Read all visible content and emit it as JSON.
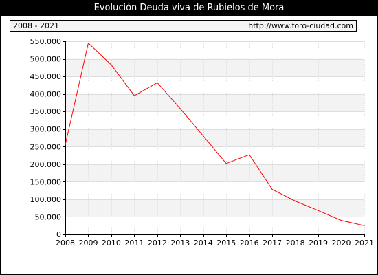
{
  "header": {
    "title": "Evolución Deuda viva de Rubielos de Mora",
    "period": "2008 - 2021",
    "site": "http://www.foro-ciudad.com"
  },
  "colors": {
    "line": "#ff0000",
    "grid": "#dddddd",
    "plot_band": "#f3f3f3",
    "plot_bg": "#ffffff",
    "axis": "#000000"
  },
  "chart_data": {
    "type": "line",
    "title": "Evolución Deuda viva de Rubielos de Mora",
    "xlabel": "",
    "ylabel": "",
    "x": [
      "2008",
      "2009",
      "2010",
      "2011",
      "2012",
      "2013",
      "2014",
      "2015",
      "2016",
      "2017",
      "2018",
      "2019",
      "2020",
      "2021"
    ],
    "series": [
      {
        "values": [
          255000,
          545000,
          483000,
          395000,
          432000,
          358000,
          280000,
          202000,
          227000,
          128000,
          95000,
          68000,
          40000,
          25000
        ]
      }
    ],
    "ylim": [
      0,
      550000
    ],
    "yticks": [
      0,
      50000,
      100000,
      150000,
      200000,
      250000,
      300000,
      350000,
      400000,
      450000,
      500000,
      550000
    ],
    "ytick_labels": [
      "0",
      "50.000",
      "100.000",
      "150.000",
      "200.000",
      "250.000",
      "300.000",
      "350.000",
      "400.000",
      "450.000",
      "500.000",
      "550.000"
    ],
    "grid": true
  }
}
